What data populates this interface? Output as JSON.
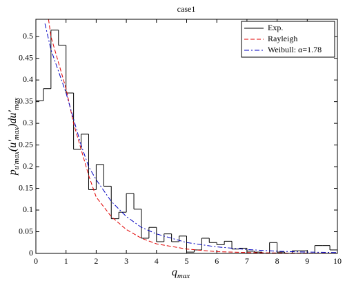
{
  "chart_data": {
    "type": "histogram",
    "title": "case1",
    "xlabel": "q",
    "xlabel_sub": "max",
    "ylabel_parts": [
      "p",
      "u′max",
      "(u′",
      "max",
      ")du′",
      "max"
    ],
    "xlim": [
      0,
      10
    ],
    "ylim": [
      0,
      0.54
    ],
    "xticks": [
      0,
      1,
      2,
      3,
      4,
      5,
      6,
      7,
      8,
      9,
      10
    ],
    "yticks": [
      0,
      0.05,
      0.1,
      0.15,
      0.2,
      0.25,
      0.3,
      0.35,
      0.4,
      0.45,
      0.5
    ],
    "legend": "upper right",
    "bins": [
      0,
      0.25,
      0.5,
      0.75,
      1,
      1.25,
      1.5,
      1.75,
      2,
      2.25,
      2.5,
      2.75,
      3,
      3.25,
      3.5,
      3.75,
      4,
      4.25,
      4.5,
      4.75,
      5,
      5.25,
      5.5,
      5.75,
      6,
      6.25,
      6.5,
      6.75,
      7,
      7.25,
      7.5,
      7.75,
      8,
      8.25,
      8.5,
      8.75,
      9,
      9.25,
      9.5,
      9.75,
      10
    ],
    "series": [
      {
        "name": "Exp.",
        "color": "#000000",
        "style": "solid",
        "values": [
          0.352,
          0.38,
          0.515,
          0.48,
          0.37,
          0.24,
          0.275,
          0.147,
          0.205,
          0.155,
          0.08,
          0.095,
          0.138,
          0.102,
          0.035,
          0.06,
          0.027,
          0.045,
          0.027,
          0.04,
          0.003,
          0.008,
          0.035,
          0.025,
          0.02,
          0.028,
          0.01,
          0.012,
          0.005,
          0.003,
          0,
          0.025,
          0.003,
          0,
          0.006,
          0.006,
          0,
          0.018,
          0.018,
          0.008
        ]
      },
      {
        "name": "Rayleigh",
        "color": "#e00000",
        "style": "dashed",
        "x": [
          0.42,
          0.5,
          0.75,
          1,
          1.25,
          1.5,
          1.75,
          2,
          2.5,
          3,
          3.5,
          4,
          5,
          6,
          7,
          8,
          9,
          10
        ],
        "values": [
          0.54,
          0.5,
          0.44,
          0.38,
          0.3,
          0.24,
          0.18,
          0.13,
          0.085,
          0.055,
          0.035,
          0.022,
          0.01,
          0.004,
          0.002,
          0.001,
          0.0005,
          0.0002
        ]
      },
      {
        "name": "Weibull: α=1.78",
        "color": "#0000c0",
        "style": "dashdot",
        "x": [
          0.3,
          0.5,
          0.75,
          1,
          1.25,
          1.5,
          1.75,
          2,
          2.5,
          3,
          3.5,
          4,
          5,
          6,
          7,
          8,
          9,
          10
        ],
        "values": [
          0.53,
          0.47,
          0.42,
          0.37,
          0.31,
          0.25,
          0.2,
          0.17,
          0.12,
          0.085,
          0.06,
          0.045,
          0.025,
          0.015,
          0.009,
          0.005,
          0.003,
          0.002
        ]
      }
    ]
  }
}
